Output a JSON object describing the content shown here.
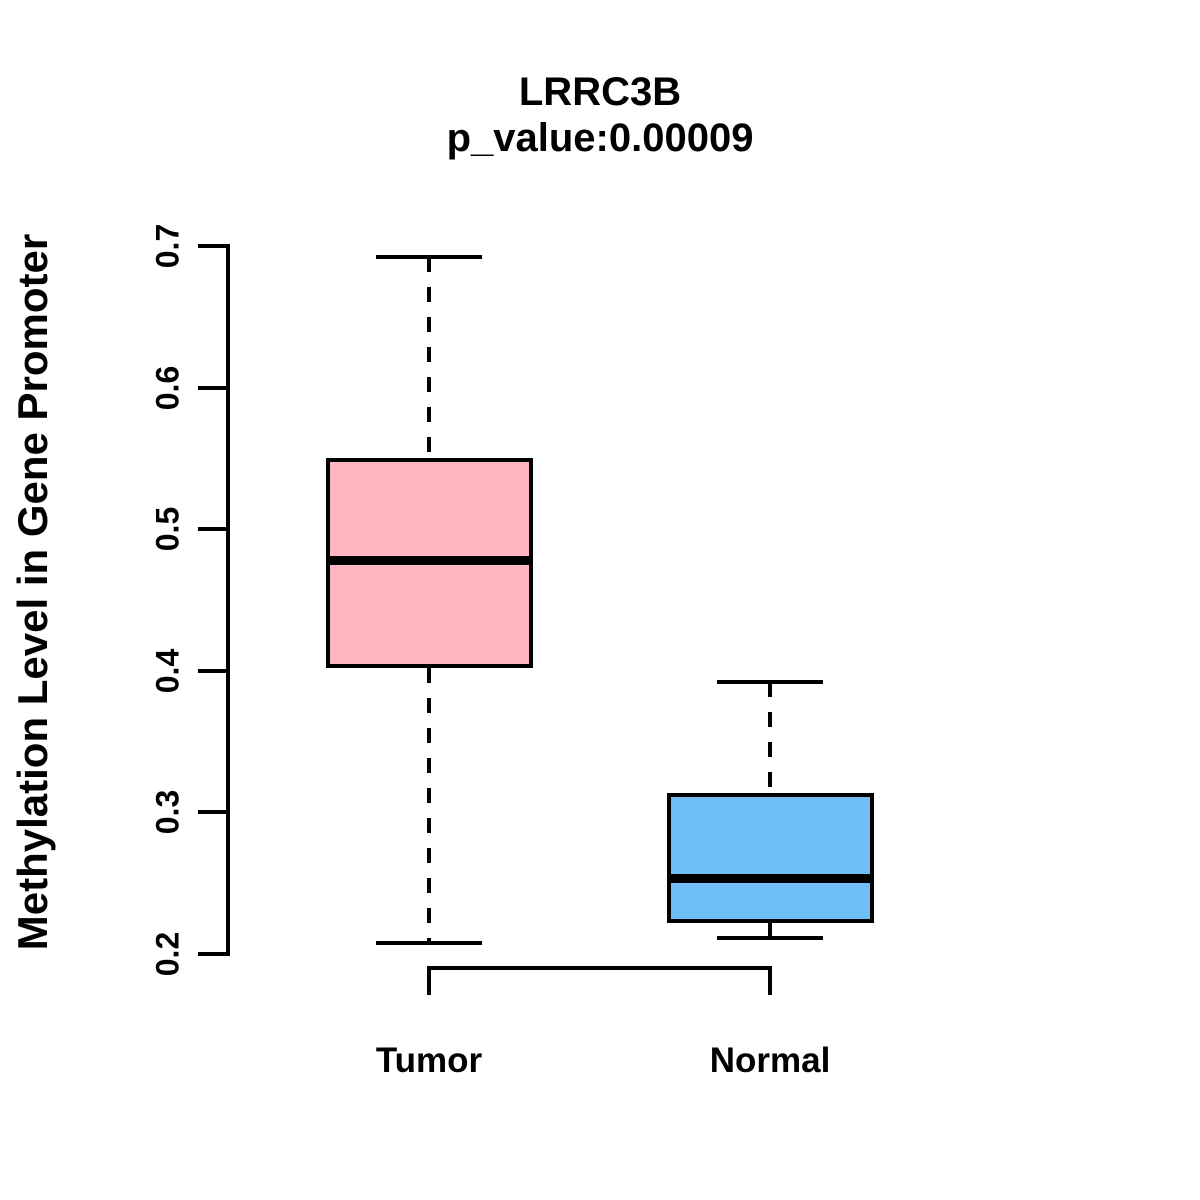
{
  "chart_data": {
    "type": "boxplot",
    "title": "LRRC3B",
    "subtitle": "p_value:0.00009",
    "ylabel": "Methylation Level in Gene Promoter",
    "xlabel": "",
    "ylim": [
      0.2,
      0.7
    ],
    "yticks": [
      "0.2",
      "0.3",
      "0.4",
      "0.5",
      "0.6",
      "0.7"
    ],
    "grid": false,
    "legend": "none",
    "categories": [
      "Tumor",
      "Normal"
    ],
    "series": [
      {
        "name": "Tumor",
        "label": "Tumor",
        "fill_color": "#FFB6C1",
        "border_color": "#000000",
        "lower_whisker": 0.208,
        "q1": 0.402,
        "median": 0.478,
        "q3": 0.55,
        "upper_whisker": 0.692
      },
      {
        "name": "Normal",
        "label": "Normal",
        "fill_color": "#6FBEF5",
        "border_color": "#000000",
        "lower_whisker": 0.211,
        "q1": 0.222,
        "median": 0.253,
        "q3": 0.314,
        "upper_whisker": 0.392
      }
    ],
    "colors": {
      "axis": "#000000",
      "text": "#000000",
      "background": "#FFFFFF"
    }
  }
}
